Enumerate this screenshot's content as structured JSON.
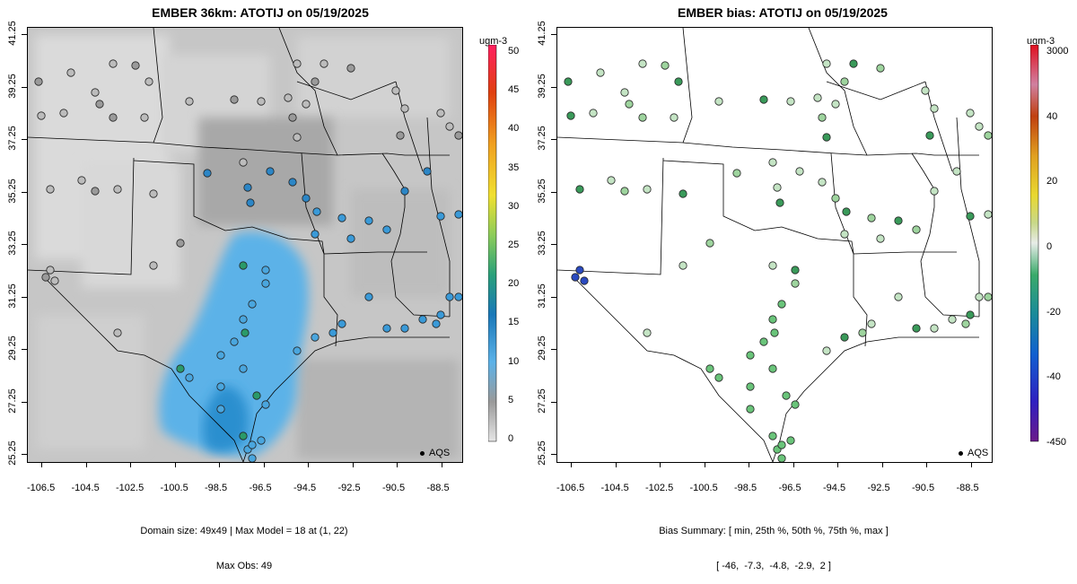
{
  "left_panel": {
    "title": "EMBER 36km: ATOTIJ on 05/19/2025",
    "caption_line1": "Domain size: 49x49 | Max Model = 18 at (1, 22)",
    "caption_line2": "Max Obs: 49",
    "legend_label": "AQS",
    "colorbar_unit": "ugm-3",
    "colorbar_ticks": [
      "50",
      "45",
      "40",
      "35",
      "30",
      "25",
      "20",
      "15",
      "10",
      "5",
      "0"
    ]
  },
  "right_panel": {
    "title": "EMBER bias: ATOTIJ on 05/19/2025",
    "caption_line1": "Bias Summary: [ min, 25th %, 50th %, 75th %, max ]",
    "caption_line2": "[ -46,  -7.3,  -4.8,  -2.9,  2 ]",
    "legend_label": "AQS",
    "colorbar_unit": "ugm-3",
    "colorbar_ticks": [
      "3000",
      "40",
      "20",
      "0",
      "-20",
      "-40",
      "-450"
    ]
  },
  "axes": {
    "x_ticks": [
      "-106.5",
      "-104.5",
      "-102.5",
      "-100.5",
      "-98.5",
      "-96.5",
      "-94.5",
      "-92.5",
      "-90.5",
      "-88.5"
    ],
    "y_ticks": [
      "41.25",
      "39.25",
      "37.25",
      "35.25",
      "33.25",
      "31.25",
      "29.25",
      "27.25",
      "25.25"
    ]
  },
  "colors": {
    "background_gray": "#c8c8c8",
    "plume_blue": "#56b0e6",
    "dark_blue": "#1a78b8",
    "site_green_light": "#b8e0b8",
    "site_green_mid": "#5fbf70",
    "site_green_dark": "#2a9a5a"
  }
}
